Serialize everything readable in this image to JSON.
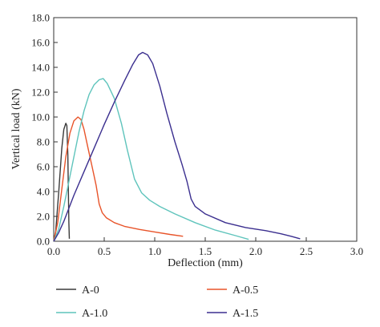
{
  "chart_data": {
    "type": "line",
    "title": "",
    "xlabel": "Deflection (mm)",
    "ylabel": "Vertical load (kN)",
    "xlim": [
      0,
      3.0
    ],
    "ylim": [
      0,
      18.0
    ],
    "x_ticks": [
      "0.0",
      "0.5",
      "1.0",
      "1.5",
      "2.0",
      "2.5",
      "3.0"
    ],
    "y_ticks": [
      "0.0",
      "2.0",
      "4.0",
      "6.0",
      "8.0",
      "10.0",
      "12.0",
      "14.0",
      "16.0",
      "18.0"
    ],
    "grid": false,
    "legend_position": "bottom",
    "series": [
      {
        "name": "A-0",
        "color": "#3a3a3a",
        "points": [
          [
            0,
            0
          ],
          [
            0.02,
            0.8
          ],
          [
            0.05,
            4.0
          ],
          [
            0.08,
            7.5
          ],
          [
            0.1,
            9.0
          ],
          [
            0.12,
            9.5
          ],
          [
            0.13,
            9.3
          ],
          [
            0.14,
            7.0
          ],
          [
            0.145,
            4.0
          ],
          [
            0.15,
            1.5
          ],
          [
            0.155,
            0.2
          ]
        ]
      },
      {
        "name": "A-0.5",
        "color": "#e8542a",
        "points": [
          [
            0,
            0
          ],
          [
            0.04,
            1.5
          ],
          [
            0.08,
            4.2
          ],
          [
            0.12,
            6.8
          ],
          [
            0.16,
            8.7
          ],
          [
            0.2,
            9.7
          ],
          [
            0.24,
            10.0
          ],
          [
            0.27,
            9.8
          ],
          [
            0.3,
            9.0
          ],
          [
            0.34,
            7.5
          ],
          [
            0.38,
            6.0
          ],
          [
            0.42,
            4.5
          ],
          [
            0.45,
            3.0
          ],
          [
            0.48,
            2.3
          ],
          [
            0.52,
            1.9
          ],
          [
            0.6,
            1.5
          ],
          [
            0.7,
            1.2
          ],
          [
            0.85,
            0.95
          ],
          [
            1.0,
            0.75
          ],
          [
            1.15,
            0.55
          ],
          [
            1.28,
            0.4
          ]
        ]
      },
      {
        "name": "A-1.0",
        "color": "#5fc4bc",
        "points": [
          [
            0,
            0
          ],
          [
            0.05,
            1.0
          ],
          [
            0.1,
            2.8
          ],
          [
            0.15,
            4.8
          ],
          [
            0.2,
            6.8
          ],
          [
            0.25,
            8.8
          ],
          [
            0.3,
            10.5
          ],
          [
            0.35,
            11.8
          ],
          [
            0.4,
            12.6
          ],
          [
            0.45,
            13.0
          ],
          [
            0.49,
            13.1
          ],
          [
            0.53,
            12.7
          ],
          [
            0.6,
            11.5
          ],
          [
            0.67,
            9.5
          ],
          [
            0.73,
            7.3
          ],
          [
            0.8,
            5.0
          ],
          [
            0.87,
            3.9
          ],
          [
            0.95,
            3.3
          ],
          [
            1.05,
            2.8
          ],
          [
            1.2,
            2.2
          ],
          [
            1.4,
            1.5
          ],
          [
            1.6,
            0.9
          ],
          [
            1.8,
            0.45
          ],
          [
            1.93,
            0.15
          ]
        ]
      },
      {
        "name": "A-1.5",
        "color": "#3b2f8f",
        "points": [
          [
            0,
            0
          ],
          [
            0.05,
            0.7
          ],
          [
            0.1,
            1.6
          ],
          [
            0.2,
            3.7
          ],
          [
            0.3,
            5.6
          ],
          [
            0.4,
            7.5
          ],
          [
            0.5,
            9.4
          ],
          [
            0.6,
            11.2
          ],
          [
            0.7,
            12.9
          ],
          [
            0.78,
            14.2
          ],
          [
            0.84,
            15.0
          ],
          [
            0.88,
            15.2
          ],
          [
            0.93,
            15.0
          ],
          [
            0.98,
            14.3
          ],
          [
            1.05,
            12.5
          ],
          [
            1.12,
            10.3
          ],
          [
            1.2,
            8.0
          ],
          [
            1.27,
            6.2
          ],
          [
            1.32,
            4.8
          ],
          [
            1.36,
            3.4
          ],
          [
            1.4,
            2.8
          ],
          [
            1.5,
            2.2
          ],
          [
            1.7,
            1.5
          ],
          [
            1.9,
            1.1
          ],
          [
            2.1,
            0.85
          ],
          [
            2.25,
            0.6
          ],
          [
            2.35,
            0.4
          ],
          [
            2.44,
            0.2
          ]
        ]
      }
    ]
  }
}
